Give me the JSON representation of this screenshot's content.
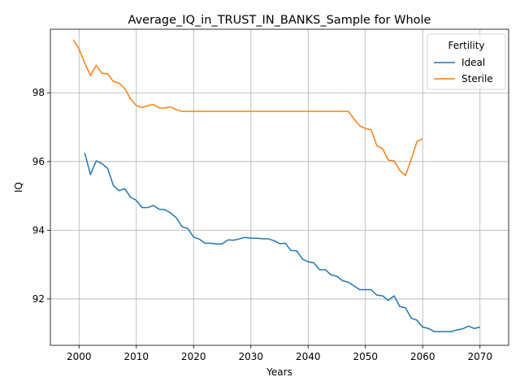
{
  "chart_data": {
    "type": "line",
    "title": "Average_IQ_in_TRUST_IN_BANKS_Sample for Whole",
    "xlabel": "Years",
    "ylabel": "IQ",
    "xlim": [
      1995,
      2075
    ],
    "ylim": [
      90.65,
      99.85
    ],
    "xticks": [
      2000,
      2010,
      2020,
      2030,
      2040,
      2050,
      2060,
      2070
    ],
    "yticks": [
      92,
      94,
      96,
      98
    ],
    "grid": true,
    "legend": {
      "title": "Fertility",
      "position": "top-right"
    },
    "series": [
      {
        "name": "Ideal",
        "color": "#1f77b4",
        "x": [
          2001,
          2002,
          2003,
          2004,
          2005,
          2006,
          2007,
          2008,
          2009,
          2010,
          2011,
          2012,
          2013,
          2014,
          2015,
          2016,
          2017,
          2018,
          2019,
          2020,
          2021,
          2022,
          2023,
          2024,
          2025,
          2026,
          2027,
          2028,
          2029,
          2030,
          2031,
          2032,
          2033,
          2034,
          2035,
          2036,
          2037,
          2038,
          2039,
          2040,
          2041,
          2042,
          2043,
          2044,
          2045,
          2046,
          2047,
          2048,
          2049,
          2050,
          2051,
          2052,
          2053,
          2054,
          2055,
          2056,
          2057,
          2058,
          2059,
          2060,
          2061,
          2062,
          2063,
          2064,
          2065,
          2066,
          2067,
          2068,
          2069,
          2070
        ],
        "y": [
          96.25,
          95.62,
          96.02,
          95.94,
          95.8,
          95.3,
          95.15,
          95.21,
          94.96,
          94.87,
          94.66,
          94.66,
          94.72,
          94.61,
          94.6,
          94.5,
          94.36,
          94.1,
          94.05,
          93.8,
          93.74,
          93.62,
          93.62,
          93.6,
          93.6,
          93.72,
          93.71,
          93.75,
          93.79,
          93.77,
          93.77,
          93.75,
          93.75,
          93.7,
          93.61,
          93.62,
          93.41,
          93.4,
          93.16,
          93.08,
          93.05,
          92.85,
          92.85,
          92.7,
          92.66,
          92.53,
          92.49,
          92.38,
          92.27,
          92.27,
          92.27,
          92.11,
          92.09,
          91.96,
          92.09,
          91.78,
          91.74,
          91.44,
          91.38,
          91.18,
          91.14,
          91.05,
          91.05,
          91.05,
          91.05,
          91.1,
          91.13,
          91.21,
          91.14,
          91.18
        ]
      },
      {
        "name": "Sterile",
        "color": "#ff7f0e",
        "x": [
          1999,
          2000,
          2001,
          2002,
          2003,
          2004,
          2005,
          2006,
          2007,
          2008,
          2009,
          2010,
          2011,
          2012,
          2013,
          2014,
          2015,
          2016,
          2017,
          2018,
          2019,
          2020,
          2021,
          2022,
          2023,
          2024,
          2025,
          2026,
          2027,
          2028,
          2029,
          2030,
          2031,
          2032,
          2033,
          2034,
          2035,
          2036,
          2037,
          2038,
          2039,
          2040,
          2041,
          2042,
          2043,
          2044,
          2045,
          2046,
          2047,
          2048,
          2049,
          2050,
          2051,
          2052,
          2053,
          2054,
          2055,
          2056,
          2057,
          2058,
          2059,
          2060
        ],
        "y": [
          99.55,
          99.28,
          98.87,
          98.5,
          98.8,
          98.57,
          98.55,
          98.33,
          98.28,
          98.12,
          97.82,
          97.63,
          97.57,
          97.63,
          97.66,
          97.56,
          97.56,
          97.59,
          97.51,
          97.46,
          97.46,
          97.46,
          97.46,
          97.46,
          97.46,
          97.46,
          97.46,
          97.46,
          97.46,
          97.46,
          97.46,
          97.46,
          97.46,
          97.46,
          97.46,
          97.46,
          97.46,
          97.46,
          97.46,
          97.46,
          97.46,
          97.46,
          97.46,
          97.46,
          97.46,
          97.46,
          97.46,
          97.46,
          97.46,
          97.24,
          97.04,
          96.96,
          96.92,
          96.46,
          96.37,
          96.04,
          96.02,
          95.74,
          95.59,
          96.07,
          96.58,
          96.66
        ]
      }
    ]
  }
}
